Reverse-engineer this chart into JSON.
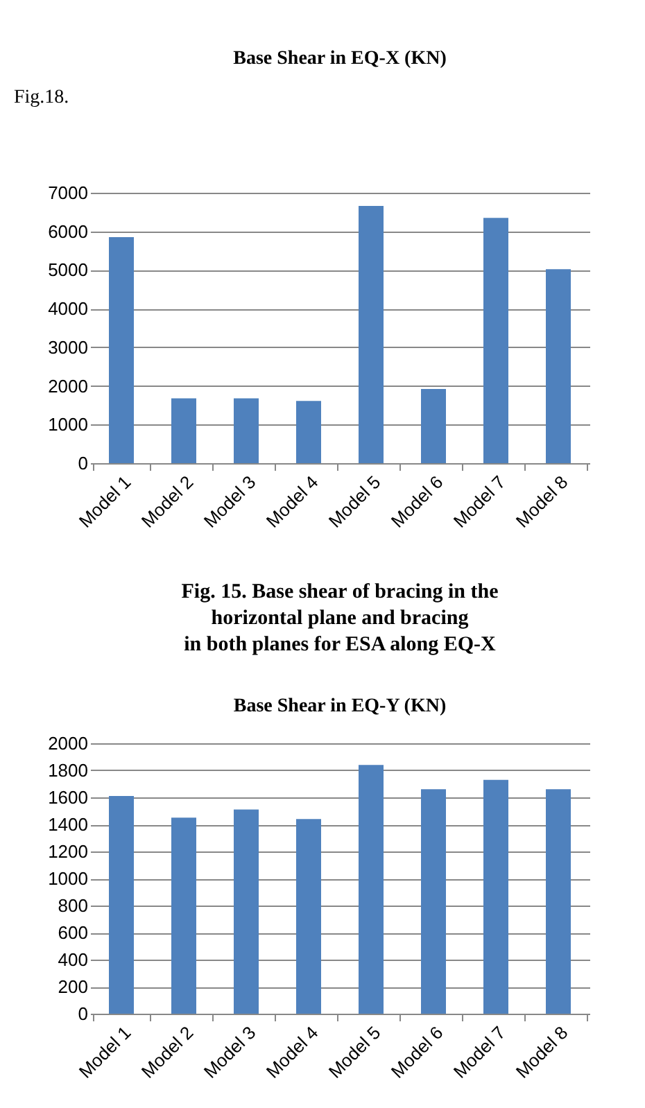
{
  "chart_data": [
    {
      "type": "bar",
      "title": "Base Shear in  EQ-X (KN)",
      "categories": [
        "Model 1",
        "Model 2",
        "Model 3",
        "Model 4",
        "Model 5",
        "Model 6",
        "Model 7",
        "Model 8"
      ],
      "values": [
        5850,
        1680,
        1680,
        1610,
        6660,
        1920,
        6350,
        5020
      ],
      "color": "#4f81bd",
      "ylim": [
        0,
        7000
      ],
      "yticks": [
        0,
        1000,
        2000,
        3000,
        4000,
        5000,
        6000,
        7000
      ],
      "grid": "y",
      "annotations": [
        "Fig.18.",
        "Fig. 15. Base shear of bracing in   the\nhorizontal plane and bracing\nin both planes for ESA along EQ-X"
      ]
    },
    {
      "type": "bar",
      "title": "Base Shear in  EQ-Y (KN)",
      "categories": [
        "Model 1",
        "Model 2",
        "Model 3",
        "Model 4",
        "Model 5",
        "Model 6",
        "Model 7",
        "Model 8"
      ],
      "values": [
        1610,
        1450,
        1510,
        1440,
        1840,
        1660,
        1730,
        1660
      ],
      "color": "#4f81bd",
      "ylim": [
        0,
        2000
      ],
      "yticks": [
        0,
        200,
        400,
        600,
        800,
        1000,
        1200,
        1400,
        1600,
        1800,
        2000
      ],
      "grid": "y"
    }
  ]
}
